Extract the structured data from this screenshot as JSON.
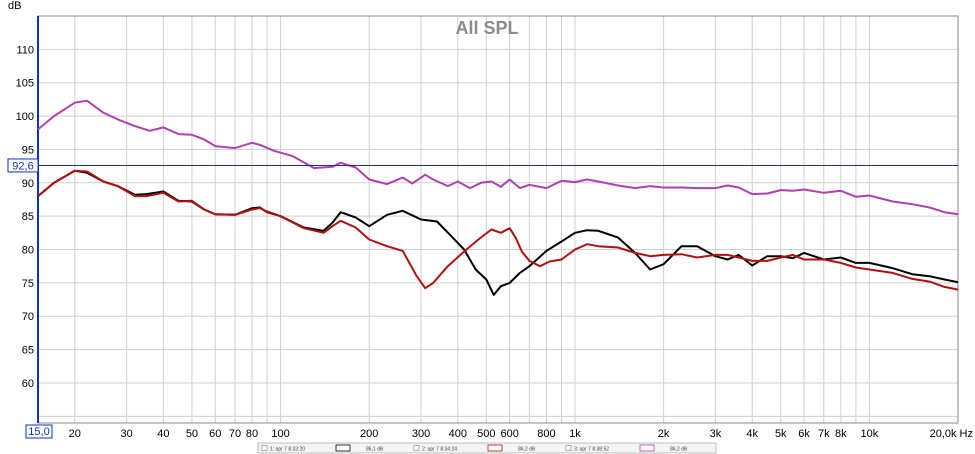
{
  "chart_data": {
    "type": "line",
    "title": "All SPL",
    "ylabel": "dB",
    "xunit": "Hz",
    "xscale": "log",
    "xlim": [
      15,
      20000
    ],
    "ylim": [
      54,
      115
    ],
    "grid": true,
    "yticks": [
      60,
      65,
      70,
      75,
      80,
      85,
      90,
      95,
      100,
      105,
      110
    ],
    "xticks": [
      {
        "v": 20,
        "label": "20"
      },
      {
        "v": 30,
        "label": "30"
      },
      {
        "v": 40,
        "label": "40"
      },
      {
        "v": 50,
        "label": "50"
      },
      {
        "v": 60,
        "label": "60"
      },
      {
        "v": 70,
        "label": "70"
      },
      {
        "v": 80,
        "label": "80"
      },
      {
        "v": 100,
        "label": "100"
      },
      {
        "v": 200,
        "label": "200"
      },
      {
        "v": 300,
        "label": "300"
      },
      {
        "v": 400,
        "label": "400"
      },
      {
        "v": 500,
        "label": "500"
      },
      {
        "v": 600,
        "label": "600"
      },
      {
        "v": 800,
        "label": "800"
      },
      {
        "v": 1000,
        "label": "1k"
      },
      {
        "v": 2000,
        "label": "2k"
      },
      {
        "v": 3000,
        "label": "3k"
      },
      {
        "v": 4000,
        "label": "4k"
      },
      {
        "v": 5000,
        "label": "5k"
      },
      {
        "v": 6000,
        "label": "6k"
      },
      {
        "v": 7000,
        "label": "7k"
      },
      {
        "v": 8000,
        "label": "8k"
      },
      {
        "v": 10000,
        "label": "10k"
      },
      {
        "v": 20000,
        "label": "20,0k Hz"
      }
    ],
    "cursor": {
      "y": 92.6,
      "label": "92,6"
    },
    "xstart_label": "15,0",
    "series": [
      {
        "color": "#b040b0",
        "x": [
          15,
          17,
          20,
          22,
          25,
          28,
          32,
          36,
          40,
          45,
          50,
          55,
          60,
          70,
          80,
          85,
          95,
          110,
          130,
          150,
          160,
          180,
          200,
          230,
          260,
          280,
          310,
          330,
          370,
          400,
          440,
          480,
          520,
          560,
          600,
          650,
          700,
          800,
          900,
          1000,
          1100,
          1200,
          1400,
          1600,
          1800,
          2000,
          2300,
          2600,
          3000,
          3300,
          3600,
          4000,
          4500,
          5000,
          5500,
          6000,
          7000,
          8000,
          9000,
          10000,
          12000,
          14000,
          16000,
          18000,
          20000
        ],
        "y": [
          98,
          100,
          102,
          102.3,
          100.5,
          99.5,
          98.5,
          97.8,
          98.3,
          97.3,
          97.2,
          96.5,
          95.5,
          95.2,
          96,
          95.7,
          94.8,
          94,
          92.2,
          92.4,
          93,
          92.3,
          90.5,
          89.8,
          90.8,
          89.9,
          91.2,
          90.5,
          89.5,
          90.2,
          89.2,
          90,
          90.2,
          89.4,
          90.5,
          89.2,
          89.7,
          89.2,
          90.3,
          90.1,
          90.5,
          90.2,
          89.6,
          89.2,
          89.5,
          89.3,
          89.3,
          89.2,
          89.2,
          89.6,
          89.3,
          88.3,
          88.4,
          88.9,
          88.8,
          89,
          88.5,
          88.8,
          87.9,
          88.1,
          87.2,
          86.8,
          86.3,
          85.6,
          85.3
        ]
      },
      {
        "color": "#000000",
        "x": [
          15,
          17,
          20,
          22,
          25,
          28,
          32,
          35,
          40,
          45,
          50,
          55,
          60,
          70,
          80,
          85,
          90,
          100,
          120,
          140,
          150,
          160,
          180,
          200,
          230,
          260,
          300,
          340,
          380,
          420,
          460,
          500,
          530,
          560,
          600,
          650,
          700,
          800,
          900,
          1000,
          1100,
          1200,
          1400,
          1600,
          1800,
          2000,
          2300,
          2600,
          3000,
          3300,
          3600,
          4000,
          4500,
          5000,
          5500,
          6000,
          7000,
          8000,
          9000,
          10000,
          12000,
          14000,
          16000,
          18000,
          20000
        ],
        "y": [
          88,
          90,
          91.8,
          91.5,
          90.2,
          89.5,
          88.2,
          88.3,
          88.7,
          87.3,
          87.2,
          86,
          85.3,
          85.2,
          86.2,
          86.3,
          85.6,
          85,
          83.3,
          82.8,
          84,
          85.6,
          84.8,
          83.5,
          85.2,
          85.8,
          84.5,
          84.2,
          82,
          80,
          77,
          75.5,
          73.2,
          74.5,
          75,
          76.5,
          77.5,
          79.8,
          81.2,
          82.5,
          82.9,
          82.8,
          81.8,
          79.5,
          77,
          77.8,
          80.5,
          80.5,
          79,
          78.5,
          79.2,
          77.6,
          79,
          79,
          78.7,
          79.5,
          78.5,
          78.8,
          78,
          78,
          77.2,
          76.3,
          76,
          75.5,
          75.1
        ]
      },
      {
        "color": "#b01010",
        "x": [
          15,
          17,
          20,
          22,
          25,
          28,
          32,
          35,
          40,
          45,
          50,
          55,
          60,
          70,
          80,
          85,
          90,
          100,
          120,
          140,
          150,
          160,
          180,
          200,
          230,
          260,
          290,
          310,
          330,
          370,
          420,
          470,
          520,
          560,
          600,
          630,
          660,
          700,
          760,
          820,
          900,
          1000,
          1100,
          1200,
          1400,
          1600,
          1800,
          2000,
          2300,
          2600,
          3000,
          3300,
          3600,
          4000,
          4500,
          5000,
          5500,
          6000,
          7000,
          8000,
          9000,
          10000,
          12000,
          14000,
          16000,
          18000,
          20000
        ],
        "y": [
          88,
          90,
          91.8,
          91.7,
          90.2,
          89.5,
          88,
          88,
          88.5,
          87.2,
          87.3,
          86,
          85.3,
          85.2,
          86,
          86.2,
          85.7,
          85,
          83.2,
          82.5,
          83.5,
          84.3,
          83.3,
          81.5,
          80.5,
          79.8,
          76,
          74.2,
          75,
          77.5,
          79.7,
          81.5,
          83,
          82.5,
          83.2,
          81.7,
          79.7,
          78.3,
          77.5,
          78.2,
          78.5,
          80,
          80.8,
          80.5,
          80.3,
          79.5,
          79,
          79.2,
          79.3,
          78.8,
          79.2,
          79.2,
          78.8,
          78.3,
          78.3,
          78.8,
          79.2,
          78.5,
          78.5,
          78,
          77.3,
          77,
          76.5,
          75.6,
          75.2,
          74.4,
          74
        ]
      }
    ]
  },
  "legend": [
    {
      "label": "1: apr 7 8:33:20",
      "value": "86,1 dB",
      "color": "#000000"
    },
    {
      "label": "2: apr 7 8:34:24",
      "value": "86,2 dB",
      "color": "#b01010"
    },
    {
      "label": "3: apr 7 8:38:52",
      "value": "86,2 dB",
      "color": "#b040b0"
    }
  ]
}
